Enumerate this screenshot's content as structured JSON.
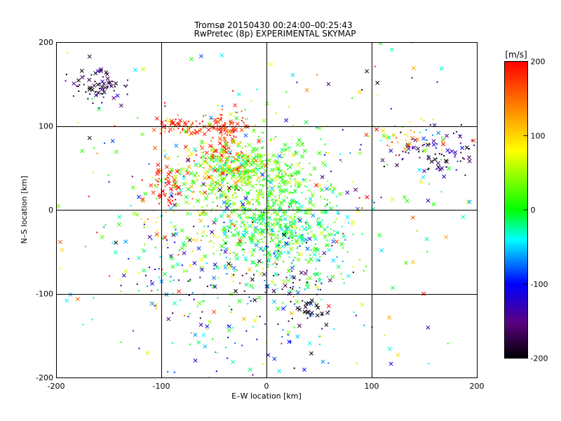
{
  "chart_data": [
    {
      "type": "scatter",
      "title": "Tromsø 20150430 00:24:00–00:25:43",
      "subtitle": "RwPretec (8p) EXPERIMENTAL SKYMAP",
      "xlabel": "E–W location [km]",
      "ylabel": "N–S location [km]",
      "xlim": [
        -200,
        200
      ],
      "ylim": [
        -200,
        200
      ],
      "xticks": [
        -200,
        -100,
        0,
        100,
        200
      ],
      "yticks": [
        -200,
        -100,
        0,
        100,
        200
      ],
      "grid": true,
      "color_scale": {
        "label": "[m/s]",
        "min": -200,
        "max": 200,
        "ticks": [
          -200,
          -100,
          0,
          100,
          200
        ],
        "colors": [
          "#000000",
          "#5a0080",
          "#0000ff",
          "#00ffff",
          "#00ff00",
          "#ffff00",
          "#ff8000",
          "#ff0000"
        ]
      },
      "markers": [
        "cross",
        "dot"
      ],
      "clusters": [
        {
          "center": [
            -160,
            150
          ],
          "spread": [
            15,
            12
          ],
          "count": 70,
          "value": -175,
          "value_spread": 30
        },
        {
          "center": [
            -38,
            98
          ],
          "spread": [
            8,
            8
          ],
          "count": 70,
          "value": 175,
          "value_spread": 25
        },
        {
          "center": [
            -75,
            98
          ],
          "spread": [
            15,
            6
          ],
          "count": 60,
          "value": 185,
          "value_spread": 20
        },
        {
          "center": [
            -95,
            25
          ],
          "spread": [
            8,
            12
          ],
          "count": 60,
          "value": 190,
          "value_spread": 15
        },
        {
          "center": [
            -40,
            65
          ],
          "spread": [
            15,
            8
          ],
          "count": 60,
          "value": 180,
          "value_spread": 25
        },
        {
          "center": [
            -40,
            45
          ],
          "spread": [
            20,
            12
          ],
          "count": 90,
          "value": 100,
          "value_spread": 60
        },
        {
          "center": [
            -30,
            60
          ],
          "spread": [
            15,
            10
          ],
          "count": 70,
          "value": 20,
          "value_spread": 35
        },
        {
          "center": [
            0,
            20
          ],
          "spread": [
            30,
            35
          ],
          "count": 450,
          "value": 20,
          "value_spread": 25
        },
        {
          "center": [
            20,
            -30
          ],
          "spread": [
            30,
            30
          ],
          "count": 300,
          "value": -20,
          "value_spread": 30
        },
        {
          "center": [
            -50,
            10
          ],
          "spread": [
            40,
            50
          ],
          "count": 250,
          "value": 40,
          "value_spread": 70
        },
        {
          "center": [
            -30,
            -90
          ],
          "spread": [
            60,
            50
          ],
          "count": 200,
          "value": -60,
          "value_spread": 60
        },
        {
          "center": [
            40,
            -120
          ],
          "spread": [
            10,
            10
          ],
          "count": 30,
          "value": -190,
          "value_spread": 15
        },
        {
          "center": [
            10,
            -85
          ],
          "spread": [
            20,
            10
          ],
          "count": 25,
          "value": -180,
          "value_spread": 20
        },
        {
          "center": [
            165,
            70
          ],
          "spread": [
            20,
            15
          ],
          "count": 90,
          "value": -150,
          "value_spread": 50
        },
        {
          "center": [
            135,
            85
          ],
          "spread": [
            20,
            12
          ],
          "count": 40,
          "value": 100,
          "value_spread": 80
        },
        {
          "center": [
            0,
            0
          ],
          "spread": [
            120,
            120
          ],
          "count": 400,
          "value": 0,
          "value_spread": 120
        }
      ]
    }
  ]
}
